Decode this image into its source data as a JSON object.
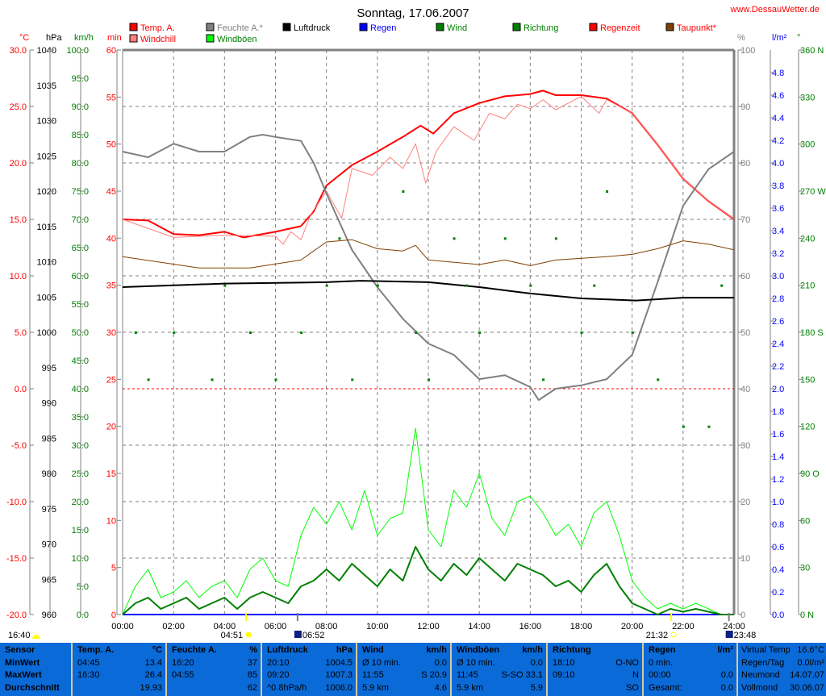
{
  "title": "Sonntag, 17.06.2007",
  "site": "www.DessauWetter.de",
  "colors": {
    "temp": "#ff0000",
    "windchill": "#ff8080",
    "humidity": "#808080",
    "pressure": "#000000",
    "rain": "#0000ff",
    "wind": "#008000",
    "gusts": "#00ff00",
    "direction": "#008000",
    "raintime": "#ff0000",
    "dewpoint": "#804000",
    "panel": "#0a6ad8"
  },
  "legend": [
    {
      "label": "Temp. A.",
      "color": "#ff0000",
      "text_color": "#ff0000"
    },
    {
      "label": "Windchill",
      "color": "#ff8080",
      "text_color": "#ff0000"
    },
    {
      "label": "Feuchte A.*",
      "color": "#808080",
      "text_color": "#808080"
    },
    {
      "label": "Windböen",
      "color": "#00ff00",
      "text_color": "#008000"
    },
    {
      "label": "Luftdruck",
      "color": "#000000",
      "text_color": "#000000"
    },
    {
      "label": "Regen",
      "color": "#0000ff",
      "text_color": "#0000ff"
    },
    {
      "label": "Wind",
      "color": "#008000",
      "text_color": "#008000"
    },
    {
      "label": "Richtung",
      "color": "#008000",
      "text_color": "#008000"
    },
    {
      "label": "Regenzeit",
      "color": "#ff0000",
      "text_color": "#ff0000"
    },
    {
      "label": "Taupunkt*",
      "color": "#804000",
      "text_color": "#ff0000"
    }
  ],
  "chart_data": {
    "type": "line",
    "x_range": [
      "00:00",
      "24:00"
    ],
    "x_ticks": [
      "00:00",
      "02:00",
      "04:00",
      "06:00",
      "08:00",
      "10:00",
      "12:00",
      "14:00",
      "16:00",
      "18:00",
      "20:00",
      "22:00",
      "24:00"
    ],
    "grid": true,
    "axes": {
      "temp": {
        "unit": "°C",
        "range": [
          -20,
          30
        ],
        "ticks": [
          "30.0",
          "25.0",
          "20.0",
          "15.0",
          "10.0",
          "5.0",
          "0.0",
          "-5.0",
          "-10.0",
          "-15.0",
          "-20.0"
        ]
      },
      "pressure": {
        "unit": "hPa",
        "range": [
          960,
          1040
        ],
        "ticks": [
          "1040",
          "1035",
          "1030",
          "1025",
          "1020",
          "1015",
          "1010",
          "1005",
          "1000",
          "995",
          "990",
          "985",
          "980",
          "975",
          "970",
          "965",
          "960"
        ]
      },
      "speed": {
        "unit": "km/h",
        "range": [
          0,
          100
        ],
        "ticks": [
          "100.0",
          "95.0",
          "90.0",
          "85.0",
          "80.0",
          "75.0",
          "70.0",
          "65.0",
          "60.0",
          "55.0",
          "50.0",
          "45.0",
          "40.0",
          "35.0",
          "30.0",
          "25.0",
          "20.0",
          "15.0",
          "10.0",
          "5.0",
          "0.0"
        ]
      },
      "minutes": {
        "unit": "min",
        "range": [
          0,
          60
        ],
        "ticks": [
          "60",
          "55",
          "50",
          "45",
          "40",
          "35",
          "30",
          "25",
          "20",
          "15",
          "10",
          "5",
          "0"
        ]
      },
      "humidity": {
        "unit": "%",
        "range": [
          0,
          100
        ],
        "ticks": [
          "100",
          "90",
          "80",
          "70",
          "60",
          "50",
          "40",
          "30",
          "20",
          "10",
          "0"
        ]
      },
      "rain": {
        "unit": "l/m²",
        "range": [
          0,
          5
        ],
        "ticks": [
          "4.8",
          "4.6",
          "4.4",
          "4.2",
          "4.0",
          "3.8",
          "3.6",
          "3.4",
          "3.2",
          "3.0",
          "2.8",
          "2.6",
          "2.4",
          "2.2",
          "2.0",
          "1.8",
          "1.6",
          "1.4",
          "1.2",
          "1.0",
          "0.8",
          "0.6",
          "0.4",
          "0.2",
          "0.0"
        ]
      },
      "direction": {
        "unit": "°",
        "range": [
          0,
          360
        ],
        "ticks": [
          "360 N",
          "330",
          "300",
          "270 W",
          "240",
          "210",
          "180 S",
          "150",
          "120",
          "90 O",
          "60",
          "30",
          "0 N"
        ]
      }
    },
    "series": [
      {
        "name": "Temp. A.",
        "axis": "temp",
        "color": "#ff0000",
        "width": 2,
        "points": [
          [
            0,
            15.0
          ],
          [
            1,
            14.9
          ],
          [
            2,
            13.7
          ],
          [
            3,
            13.6
          ],
          [
            4,
            13.9
          ],
          [
            4.75,
            13.4
          ],
          [
            6,
            13.9
          ],
          [
            7,
            14.4
          ],
          [
            7.5,
            15.7
          ],
          [
            8,
            18.0
          ],
          [
            9,
            19.8
          ],
          [
            10,
            21.0
          ],
          [
            11,
            22.3
          ],
          [
            11.7,
            23.3
          ],
          [
            12.2,
            22.6
          ],
          [
            13,
            24.4
          ],
          [
            14,
            25.3
          ],
          [
            15,
            25.9
          ],
          [
            16,
            26.1
          ],
          [
            16.5,
            26.4
          ],
          [
            17,
            26.0
          ],
          [
            18,
            26.0
          ],
          [
            19,
            25.7
          ],
          [
            20,
            24.4
          ],
          [
            21,
            21.6
          ],
          [
            22,
            18.6
          ],
          [
            23,
            16.6
          ],
          [
            24,
            15.0
          ]
        ]
      },
      {
        "name": "Windchill",
        "axis": "temp",
        "color": "#ff8080",
        "width": 1,
        "points": [
          [
            0,
            15.0
          ],
          [
            2,
            13.4
          ],
          [
            4,
            13.6
          ],
          [
            6,
            13.5
          ],
          [
            6.3,
            12.8
          ],
          [
            6.6,
            13.9
          ],
          [
            7,
            13.2
          ],
          [
            7.4,
            15.5
          ],
          [
            8,
            17.5
          ],
          [
            8.6,
            15.1
          ],
          [
            9,
            19.5
          ],
          [
            9.8,
            18.9
          ],
          [
            10.5,
            20.5
          ],
          [
            11,
            19.5
          ],
          [
            11.5,
            21.7
          ],
          [
            11.9,
            18.2
          ],
          [
            12.3,
            21.0
          ],
          [
            13,
            23.2
          ],
          [
            13.8,
            22.0
          ],
          [
            14.4,
            24.4
          ],
          [
            15,
            23.9
          ],
          [
            15.5,
            25.2
          ],
          [
            16,
            24.8
          ],
          [
            16.5,
            25.6
          ],
          [
            17,
            24.7
          ],
          [
            18,
            25.9
          ],
          [
            18.7,
            24.4
          ],
          [
            19,
            25.6
          ],
          [
            20,
            24.4
          ],
          [
            21,
            21.6
          ],
          [
            22,
            18.6
          ],
          [
            23,
            16.6
          ],
          [
            24,
            15.0
          ]
        ]
      },
      {
        "name": "Feuchte A.*",
        "axis": "humidity",
        "color": "#808080",
        "width": 2,
        "points": [
          [
            0,
            82
          ],
          [
            1,
            81
          ],
          [
            2,
            83.4
          ],
          [
            3,
            82
          ],
          [
            4,
            82
          ],
          [
            5,
            84.6
          ],
          [
            5.5,
            85
          ],
          [
            6,
            84.6
          ],
          [
            7,
            83.9
          ],
          [
            7.5,
            80
          ],
          [
            8,
            74.6
          ],
          [
            9,
            64.6
          ],
          [
            10,
            58
          ],
          [
            11,
            52.4
          ],
          [
            12,
            48
          ],
          [
            13,
            46
          ],
          [
            14,
            41.7
          ],
          [
            15,
            42.4
          ],
          [
            16,
            40.3
          ],
          [
            16.33,
            38
          ],
          [
            17,
            40
          ],
          [
            18,
            40.6
          ],
          [
            19,
            41.7
          ],
          [
            20,
            46
          ],
          [
            21,
            58.9
          ],
          [
            22,
            72.4
          ],
          [
            23,
            78.9
          ],
          [
            24,
            82
          ]
        ]
      },
      {
        "name": "Luftdruck",
        "axis": "pressure",
        "color": "#000000",
        "width": 2,
        "points": [
          [
            0,
            1006.4
          ],
          [
            4,
            1006.9
          ],
          [
            8,
            1007.1
          ],
          [
            9.33,
            1007.3
          ],
          [
            12,
            1007.1
          ],
          [
            14,
            1006.4
          ],
          [
            16,
            1005.5
          ],
          [
            18,
            1004.8
          ],
          [
            20.17,
            1004.5
          ],
          [
            22,
            1004.9
          ],
          [
            24,
            1004.9
          ]
        ]
      },
      {
        "name": "Taupunkt*",
        "axis": "temp",
        "color": "#804000",
        "width": 1,
        "points": [
          [
            0,
            11.7
          ],
          [
            3,
            10.7
          ],
          [
            5,
            10.7
          ],
          [
            7,
            11.4
          ],
          [
            8,
            13.0
          ],
          [
            9,
            13.2
          ],
          [
            10,
            12.4
          ],
          [
            11,
            12.2
          ],
          [
            11.5,
            12.7
          ],
          [
            12,
            11.4
          ],
          [
            14,
            11.0
          ],
          [
            15,
            11.4
          ],
          [
            16,
            10.9
          ],
          [
            17,
            11.4
          ],
          [
            19,
            11.7
          ],
          [
            20,
            11.9
          ],
          [
            21,
            12.4
          ],
          [
            22,
            13.1
          ],
          [
            23,
            12.8
          ],
          [
            24,
            12.3
          ]
        ]
      },
      {
        "name": "Windböen",
        "axis": "speed",
        "color": "#00ff00",
        "width": 1,
        "values_30min": [
          0,
          5,
          8,
          3,
          4,
          6,
          3,
          5,
          6,
          3,
          8,
          10,
          6,
          5,
          14,
          19,
          16,
          20,
          15,
          22,
          14,
          17,
          18,
          33,
          15,
          12,
          22,
          19,
          25,
          17,
          14,
          20,
          21,
          18,
          14,
          16,
          12,
          18,
          20,
          14,
          6,
          3,
          1,
          2,
          1,
          2,
          1,
          0,
          0
        ]
      },
      {
        "name": "Wind",
        "axis": "speed",
        "color": "#008000",
        "width": 2,
        "values_30min": [
          0,
          2,
          3,
          1,
          2,
          3,
          1,
          2,
          3,
          1,
          3,
          4,
          3,
          2,
          5,
          6,
          8,
          6,
          9,
          7,
          5,
          8,
          6,
          12,
          8,
          6,
          9,
          7,
          10,
          8,
          6,
          9,
          8,
          7,
          5,
          6,
          4,
          7,
          9,
          5,
          2,
          1,
          0,
          1,
          0.5,
          1,
          0.5,
          0,
          0
        ]
      },
      {
        "name": "Richtung",
        "axis": "direction",
        "color": "#008000",
        "type": "scatter",
        "points": [
          [
            0.5,
            180
          ],
          [
            1,
            150
          ],
          [
            2,
            180
          ],
          [
            3.5,
            150
          ],
          [
            4,
            210
          ],
          [
            5,
            180
          ],
          [
            6,
            150
          ],
          [
            7,
            180
          ],
          [
            8,
            210
          ],
          [
            8.5,
            240
          ],
          [
            9,
            150
          ],
          [
            10,
            210
          ],
          [
            11,
            270
          ],
          [
            11.5,
            180
          ],
          [
            12,
            150
          ],
          [
            13,
            240
          ],
          [
            13.5,
            210
          ],
          [
            14,
            180
          ],
          [
            15,
            240
          ],
          [
            16,
            210
          ],
          [
            16.5,
            150
          ],
          [
            17,
            240
          ],
          [
            18,
            180
          ],
          [
            18.5,
            210
          ],
          [
            19,
            270
          ],
          [
            20,
            180
          ],
          [
            21,
            150
          ],
          [
            22,
            120
          ],
          [
            23,
            120
          ],
          [
            23.5,
            210
          ]
        ]
      }
    ],
    "freezing_line": 0
  },
  "astro": {
    "left_time": "16:40",
    "sunrise": "04:51",
    "moonrise": "06:52",
    "sunset": "21:32",
    "moonset": "23:48"
  },
  "panel": {
    "sensor": {
      "h": "Sensor",
      "r1": "MinWert",
      "r2": "MaxWert",
      "r3": "Durchschnitt"
    },
    "temp": {
      "h": "Temp. A.",
      "u": "°C",
      "r1a": "04:45",
      "r1b": "13.4",
      "r2a": "16:30",
      "r2b": "26.4",
      "r3b": "19.93"
    },
    "hum": {
      "h": "Feuchte A.",
      "u": "%",
      "r1a": "16:20",
      "r1b": "37",
      "r2a": "04:55",
      "r2b": "85",
      "r3b": "62"
    },
    "press": {
      "h": "Luftdruck",
      "u": "hPa",
      "r1a": "20:10",
      "r1b": "1004.5",
      "r2a": "09:20",
      "r2b": "1007.3",
      "r3a": "^0.8hPa/h",
      "r3b": "1006.0"
    },
    "wind": {
      "h": "Wind",
      "u": "km/h",
      "r1a": "Ø 10 min.",
      "r1b": "0.0",
      "r2a": "11:55",
      "r2b": "S 20.9",
      "r3a": "5.9 km",
      "r3b": "4.6"
    },
    "gust": {
      "h": "Windböen",
      "u": "km/h",
      "r1a": "Ø 10 min.",
      "r1b": "0.0",
      "r2a": "11:45",
      "r2b": "S-SO 33.1",
      "r3a": "5.9 km",
      "r3b": "5.9"
    },
    "dir": {
      "h": "Richtung",
      "r1a": "18:10",
      "r1b": "O-NO",
      "r2a": "09:10",
      "r2b": "N",
      "r3b": "SO"
    },
    "rain": {
      "h": "Regen",
      "u": "l/m²",
      "r1a": "0 min.",
      "r2a": "00:00",
      "r2b": "0.0",
      "r3a": "Gesamt:",
      "r3b": "0.0"
    },
    "info": {
      "r0a": "Virtual Temp",
      "r0b": "16.6°C",
      "r1a": "Regen/Tag",
      "r1b": "0.0l/m²",
      "r2a": "Neumond",
      "r2b": "14.07.07",
      "r3a": "Vollmond",
      "r3b": "30.06.07"
    }
  }
}
